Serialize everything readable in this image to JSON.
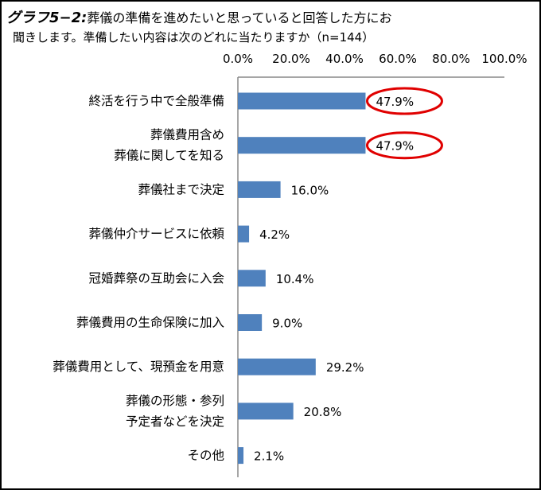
{
  "title": {
    "prefix": "グラフ5−2:",
    "line1": "葬儀の準備を進めたいと思っていると回答した方にお",
    "line2": "聞きします。準備したい内容は次のどれに当たりますか（n=144）"
  },
  "chart_data": {
    "type": "bar",
    "orientation": "horizontal",
    "categories": [
      "終活を行う中で全般準備",
      "葬儀費用含め\n葬儀に関してを知る",
      "葬儀社まで決定",
      "葬儀仲介サービスに依頼",
      "冠婚葬祭の互助会に入会",
      "葬儀費用の生命保険に加入",
      "葬儀費用として、現預金を用意",
      "葬儀の形態・参列\n予定者などを決定",
      "その他"
    ],
    "values": [
      47.9,
      47.9,
      16.0,
      4.2,
      10.4,
      9.0,
      29.2,
      20.8,
      2.1
    ],
    "data_labels": [
      "47.9%",
      "47.9%",
      "16.0%",
      "4.2%",
      "10.4%",
      "9.0%",
      "29.2%",
      "20.8%",
      "2.1%"
    ],
    "xlim": [
      0,
      100
    ],
    "xticks": [
      "0.0%",
      "20.0%",
      "40.0%",
      "60.0%",
      "80.0%",
      "100.0%"
    ],
    "axis_position": "top",
    "grid": false,
    "bar_color": "#4f81bd",
    "highlight_color": "#e00000",
    "highlighted": [
      0,
      1
    ]
  }
}
